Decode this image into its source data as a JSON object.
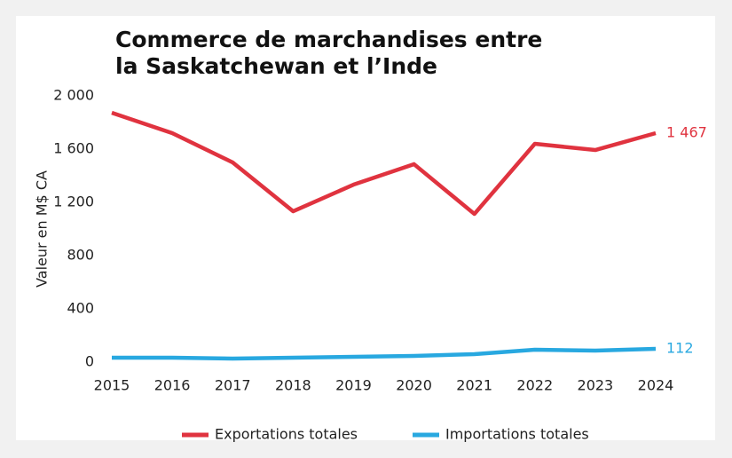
{
  "chart_data": {
    "type": "line",
    "title": [
      "Commerce de marchandises entre",
      "la Saskatchewan et l’Inde"
    ],
    "y_label": "Valeur en M$ CA",
    "categories": [
      "2015",
      "2016",
      "2017",
      "2018",
      "2019",
      "2020",
      "2021",
      "2022",
      "2023",
      "2024"
    ],
    "series": [
      {
        "name": "Exportations totales",
        "color": "#e0333f",
        "values": [
          1873,
          1720,
          1500,
          1133,
          1333,
          1487,
          1113,
          1640,
          1593,
          1720
        ]
      },
      {
        "name": "Importations totales",
        "color": "#28a8e0",
        "values": [
          33,
          33,
          27,
          33,
          40,
          47,
          60,
          93,
          87,
          100
        ]
      }
    ],
    "annotations": [
      "1 467",
      "112"
    ],
    "ylim": [
      0,
      2000
    ],
    "yticks": [
      0,
      400,
      {
        "value": 800,
        "label": "800"
      },
      {
        "value": 1200,
        "label": "1 200"
      },
      {
        "value": 1600,
        "label": "1 600"
      },
      {
        "value": 2000,
        "label": "2 000"
      }
    ],
    "grid": false,
    "legend": "bottom"
  }
}
